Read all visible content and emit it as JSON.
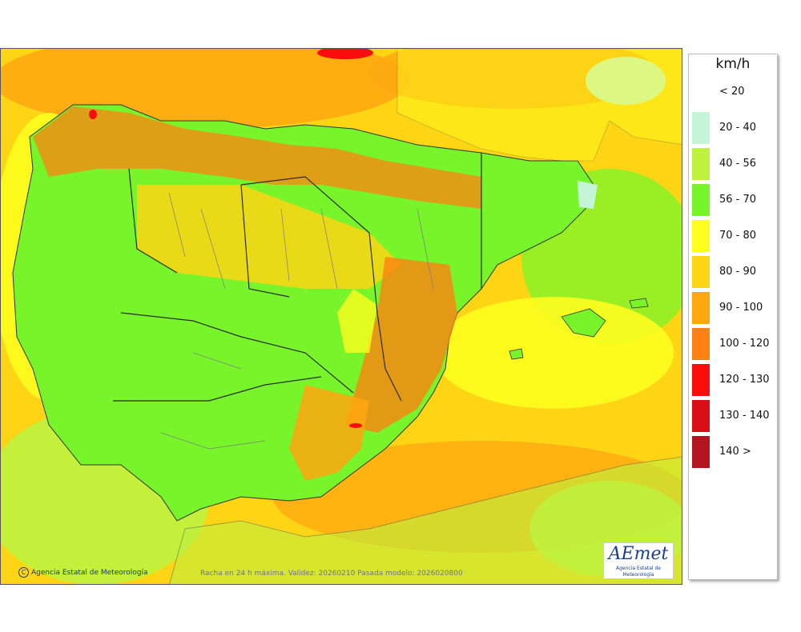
{
  "legend": {
    "unit": "km/h",
    "items": [
      {
        "label": "< 20",
        "color": "#ffffff"
      },
      {
        "label": "20 - 40",
        "color": "#c4f5d6"
      },
      {
        "label": "40 - 56",
        "color": "#bef23f"
      },
      {
        "label": "56 - 70",
        "color": "#77f52a"
      },
      {
        "label": "70 - 80",
        "color": "#fdfd1e"
      },
      {
        "label": "80 - 90",
        "color": "#fdd514"
      },
      {
        "label": "90 - 100",
        "color": "#fea70f"
      },
      {
        "label": "100 - 120",
        "color": "#fd8211"
      },
      {
        "label": "120 - 130",
        "color": "#fc0d0d"
      },
      {
        "label": "130 - 140",
        "color": "#da0e16"
      },
      {
        "label": "140 >",
        "color": "#b41521"
      }
    ]
  },
  "map": {
    "credit": "Agencia Estatal de Meteorología",
    "footer_note": "Racha en 24 h máxima. Validez: 20260210 Pasada modelo: 2026020800",
    "logo_text": "AEmet",
    "logo_subtext": "Agencia Estatal de Meteorología"
  }
}
